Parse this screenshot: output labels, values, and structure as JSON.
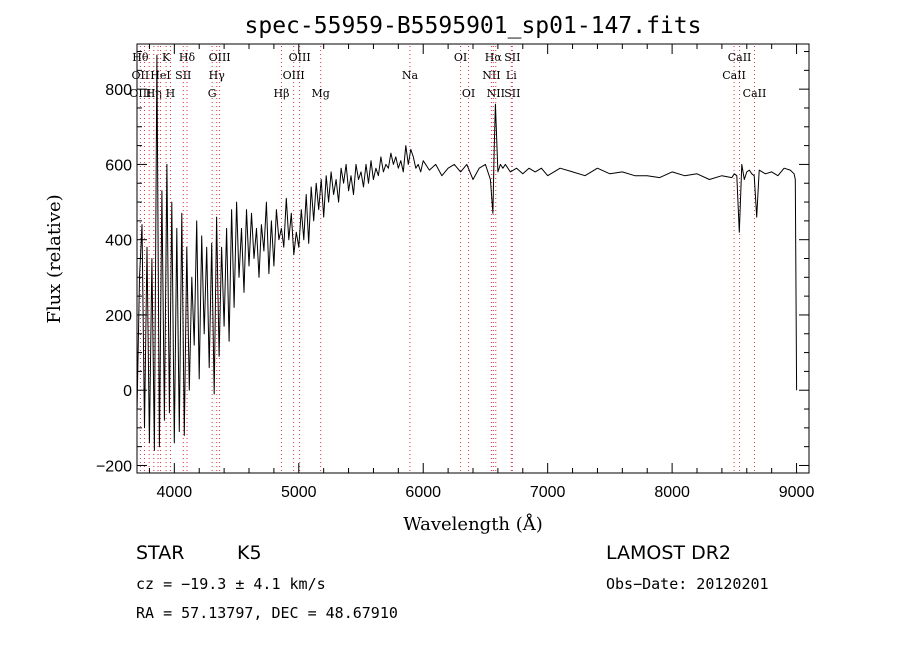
{
  "chart_data": {
    "type": "line",
    "title": "spec-55959-B5595901_sp01-147.fits",
    "xlabel": "Wavelength (Å)",
    "ylabel": "Flux (relative)",
    "xlim": [
      3700,
      9100
    ],
    "ylim": [
      -220,
      920
    ],
    "x_ticks": [
      4000,
      5000,
      6000,
      7000,
      8000,
      9000
    ],
    "y_ticks": [
      -200,
      0,
      200,
      400,
      600,
      800
    ],
    "grid": false,
    "series": [
      {
        "x": [
          3700,
          3720,
          3740,
          3760,
          3780,
          3800,
          3820,
          3840,
          3860,
          3880,
          3900,
          3920,
          3940,
          3960,
          3980,
          4000,
          4020,
          4040,
          4060,
          4080,
          4100,
          4120,
          4140,
          4160,
          4180,
          4200,
          4220,
          4240,
          4260,
          4280,
          4300,
          4320,
          4340,
          4360,
          4380,
          4400,
          4420,
          4440,
          4460,
          4480,
          4500,
          4520,
          4540,
          4560,
          4580,
          4600,
          4620,
          4640,
          4660,
          4680,
          4700,
          4720,
          4740,
          4760,
          4780,
          4800,
          4820,
          4840,
          4860,
          4880,
          4900,
          4920,
          4940,
          4960,
          4980,
          5000,
          5020,
          5040,
          5060,
          5080,
          5100,
          5120,
          5140,
          5160,
          5180,
          5200,
          5220,
          5240,
          5260,
          5280,
          5300,
          5320,
          5340,
          5360,
          5380,
          5400,
          5420,
          5440,
          5460,
          5480,
          5500,
          5520,
          5540,
          5560,
          5580,
          5600,
          5620,
          5640,
          5660,
          5680,
          5700,
          5720,
          5740,
          5760,
          5780,
          5800,
          5820,
          5840,
          5860,
          5880,
          5900,
          5920,
          5940,
          5960,
          5980,
          6000,
          6050,
          6100,
          6150,
          6200,
          6250,
          6300,
          6350,
          6400,
          6450,
          6500,
          6540,
          6560,
          6570,
          6580,
          6600,
          6620,
          6640,
          6660,
          6700,
          6750,
          6800,
          6850,
          6900,
          6950,
          7000,
          7100,
          7200,
          7300,
          7400,
          7500,
          7600,
          7700,
          7800,
          7900,
          8000,
          8100,
          8200,
          8300,
          8400,
          8480,
          8500,
          8520,
          8540,
          8560,
          8580,
          8600,
          8620,
          8640,
          8660,
          8680,
          8700,
          8750,
          8800,
          8850,
          8900,
          8950,
          8980,
          8990,
          9000
        ],
        "y": [
          -60,
          300,
          440,
          -100,
          380,
          -140,
          350,
          -160,
          890,
          -150,
          530,
          -80,
          600,
          -60,
          500,
          -140,
          430,
          -110,
          470,
          -120,
          380,
          0,
          300,
          120,
          450,
          30,
          410,
          150,
          380,
          60,
          390,
          -10,
          460,
          90,
          380,
          170,
          430,
          130,
          480,
          220,
          500,
          300,
          430,
          260,
          480,
          330,
          470,
          350,
          430,
          300,
          440,
          370,
          500,
          310,
          450,
          330,
          480,
          400,
          430,
          380,
          510,
          400,
          470,
          360,
          420,
          380,
          480,
          400,
          520,
          390,
          540,
          450,
          550,
          480,
          560,
          460,
          570,
          500,
          580,
          520,
          560,
          500,
          590,
          550,
          600,
          530,
          570,
          520,
          600,
          560,
          580,
          540,
          600,
          550,
          610,
          560,
          590,
          570,
          620,
          580,
          600,
          590,
          630,
          600,
          620,
          590,
          610,
          580,
          650,
          600,
          640,
          620,
          590,
          600,
          580,
          610,
          585,
          600,
          570,
          590,
          600,
          580,
          600,
          560,
          590,
          600,
          560,
          470,
          640,
          760,
          580,
          600,
          590,
          600,
          580,
          590,
          575,
          590,
          580,
          590,
          570,
          590,
          580,
          570,
          590,
          575,
          580,
          570,
          570,
          565,
          580,
          570,
          575,
          560,
          570,
          565,
          575,
          570,
          420,
          600,
          560,
          580,
          585,
          575,
          570,
          460,
          585,
          575,
          580,
          570,
          590,
          585,
          575,
          560,
          0
        ]
      }
    ],
    "emission_lines": [
      {
        "x": 3727,
        "top": "Hθ",
        "mid": "OII",
        "low": "OIII"
      },
      {
        "x": 3760,
        "top": "",
        "mid": "",
        "low": ""
      },
      {
        "x": 3798,
        "top": "",
        "mid": "",
        "low": ""
      },
      {
        "x": 3835,
        "top": "",
        "mid": "",
        "low": "Hη"
      },
      {
        "x": 3869,
        "top": "",
        "mid": "",
        "low": ""
      },
      {
        "x": 3889,
        "top": "",
        "mid": "HeI",
        "low": ""
      },
      {
        "x": 3934,
        "top": "K",
        "mid": "",
        "low": ""
      },
      {
        "x": 3969,
        "top": "",
        "mid": "",
        "low": "H"
      },
      {
        "x": 4072,
        "top": "",
        "mid": "SII",
        "low": ""
      },
      {
        "x": 4102,
        "top": "Hδ",
        "mid": "",
        "low": ""
      },
      {
        "x": 4304,
        "top": "",
        "mid": "",
        "low": "G"
      },
      {
        "x": 4341,
        "top": "",
        "mid": "Hγ",
        "low": ""
      },
      {
        "x": 4364,
        "top": "OIII",
        "mid": "",
        "low": ""
      },
      {
        "x": 4861,
        "top": "",
        "mid": "",
        "low": "Hβ"
      },
      {
        "x": 4959,
        "top": "",
        "mid": "OIII",
        "low": ""
      },
      {
        "x": 5007,
        "top": "OIII",
        "mid": "",
        "low": ""
      },
      {
        "x": 5176,
        "top": "",
        "mid": "",
        "low": "Mg"
      },
      {
        "x": 5893,
        "top": "",
        "mid": "Na",
        "low": ""
      },
      {
        "x": 6300,
        "top": "OI",
        "mid": "",
        "low": ""
      },
      {
        "x": 6364,
        "top": "",
        "mid": "",
        "low": "OI"
      },
      {
        "x": 6548,
        "top": "",
        "mid": "NII",
        "low": ""
      },
      {
        "x": 6563,
        "top": "Hα",
        "mid": "",
        "low": ""
      },
      {
        "x": 6583,
        "top": "",
        "mid": "",
        "low": "NII"
      },
      {
        "x": 6708,
        "top": "",
        "mid": "Li",
        "low": ""
      },
      {
        "x": 6716,
        "top": "SII",
        "mid": "",
        "low": "SII"
      },
      {
        "x": 8498,
        "top": "",
        "mid": "CaII",
        "low": ""
      },
      {
        "x": 8542,
        "top": "CaII",
        "mid": "",
        "low": ""
      },
      {
        "x": 8662,
        "top": "",
        "mid": "",
        "low": "CaII"
      }
    ]
  },
  "info": {
    "class_label": "STAR",
    "subclass": "K5",
    "survey": "LAMOST DR2",
    "cz": "cz = −19.3 ± 4.1 km/s",
    "obs_date": "Obs−Date: 20120201",
    "coords": "RA =  57.13797, DEC =  48.67910"
  },
  "colors": {
    "spectrum": "#000000",
    "lines": "#e0303c",
    "axis": "#000000"
  }
}
